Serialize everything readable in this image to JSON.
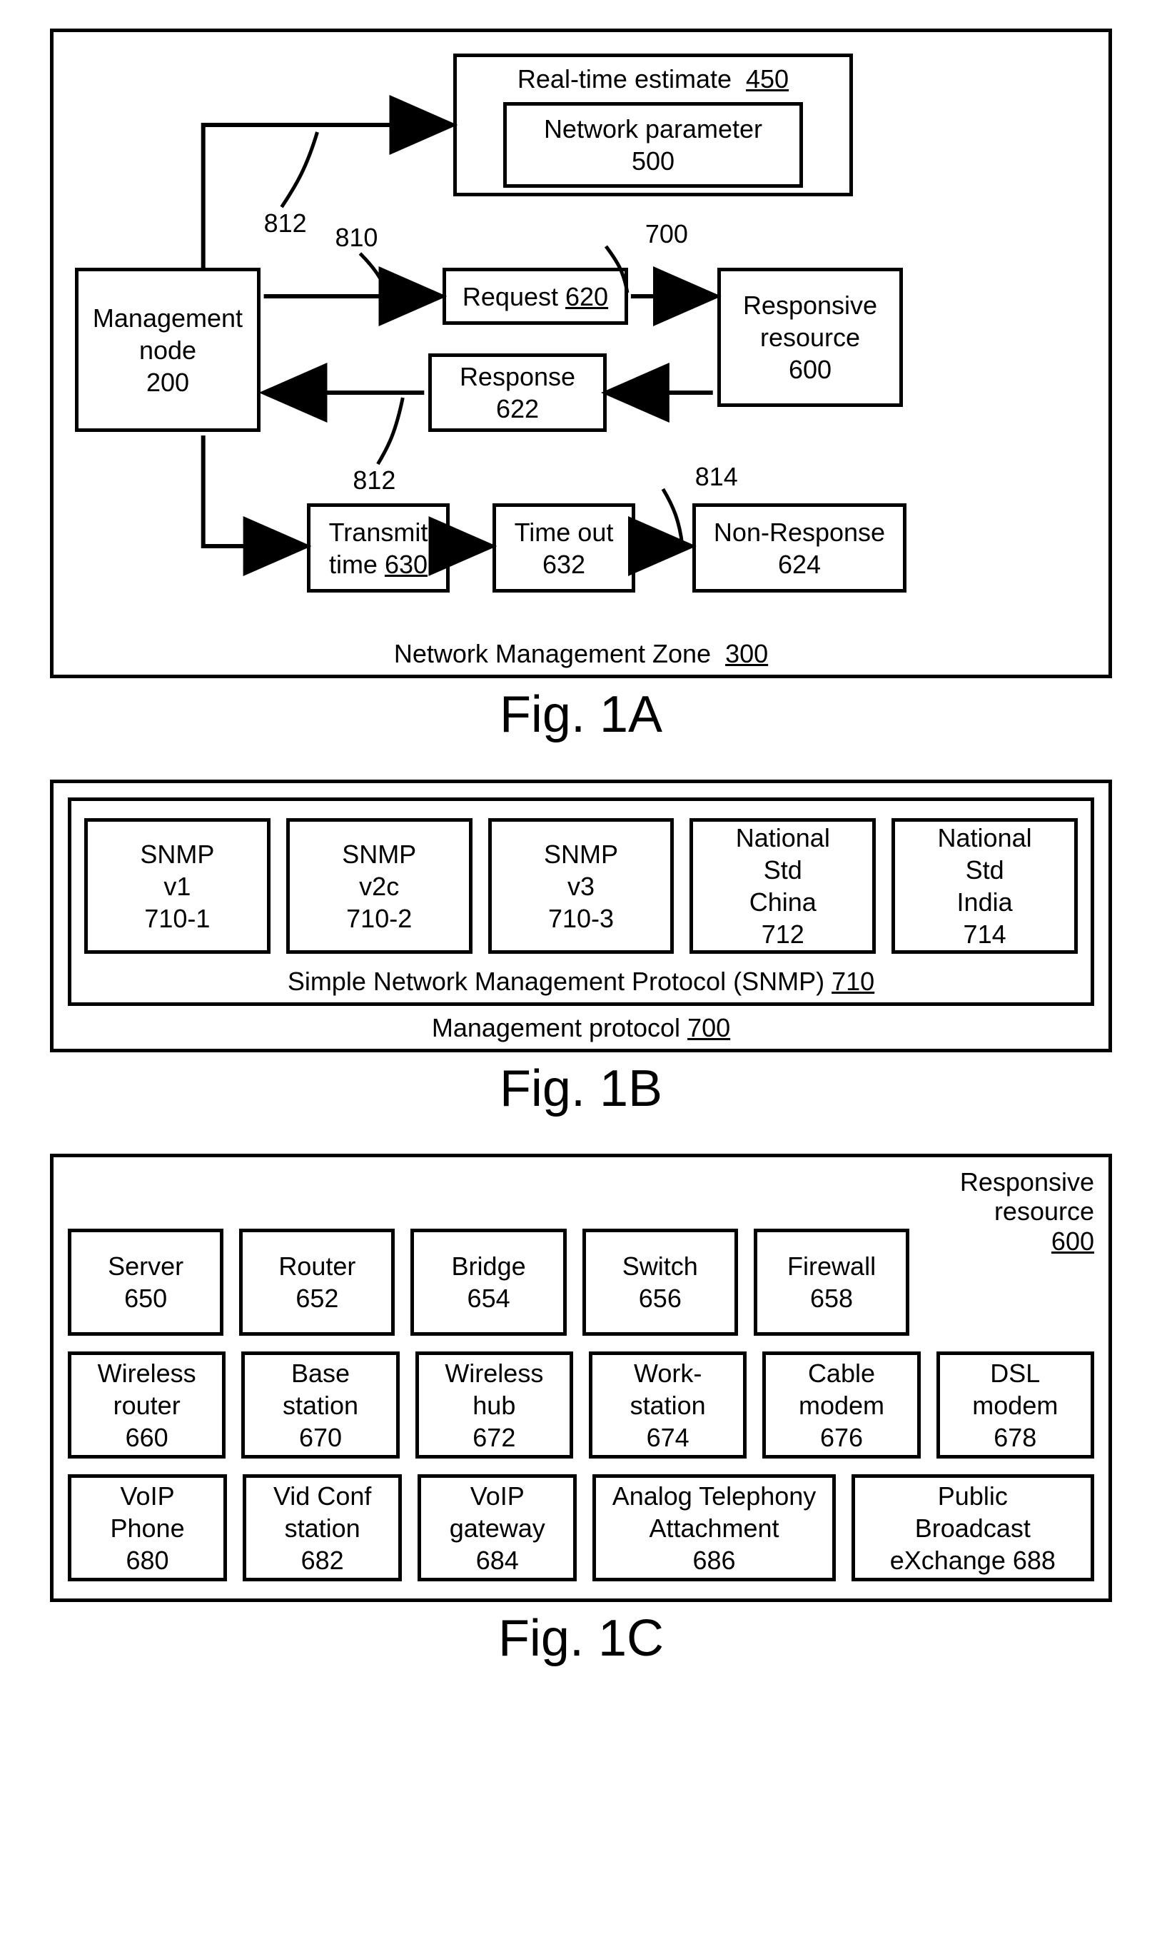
{
  "colors": {
    "stroke": "#000000",
    "bg": "#ffffff"
  },
  "stroke_width": 5,
  "fontsize_box": 36,
  "fontsize_caption": 72,
  "fig1a": {
    "container_label": "Network Management Zone",
    "container_num": "300",
    "figure_caption": "Fig. 1A",
    "nodes": {
      "mgmt": {
        "lines": [
          "Management",
          "node",
          "200"
        ]
      },
      "rte": {
        "title": "Real-time estimate",
        "title_num": "450",
        "inner_lines": [
          "Network parameter",
          "500"
        ]
      },
      "req": {
        "label": "Request",
        "num": "620"
      },
      "resp": {
        "label": "Response",
        "num": "622"
      },
      "rr": {
        "lines": [
          "Responsive",
          "resource",
          "600"
        ]
      },
      "tt": {
        "label": "Transmit",
        "label2": "time",
        "num": "630"
      },
      "to": {
        "label": "Time out",
        "num": "632"
      },
      "nr": {
        "label": "Non-Response",
        "num": "624"
      }
    },
    "edge_labels": {
      "e812a": "812",
      "e810": "810",
      "e700": "700",
      "e812b": "812",
      "e814": "814"
    }
  },
  "fig1b": {
    "figure_caption": "Fig. 1B",
    "outer_label": "Management protocol",
    "outer_num": "700",
    "inner_label": "Simple Network Management Protocol (SNMP)",
    "inner_num": "710",
    "items": [
      {
        "lines": [
          "SNMP",
          "v1",
          "710-1"
        ]
      },
      {
        "lines": [
          "SNMP",
          "v2c",
          "710-2"
        ]
      },
      {
        "lines": [
          "SNMP",
          "v3",
          "710-3"
        ]
      },
      {
        "lines": [
          "National",
          "Std",
          "China",
          "712"
        ]
      },
      {
        "lines": [
          "National",
          "Std",
          "India",
          "714"
        ]
      }
    ]
  },
  "fig1c": {
    "figure_caption": "Fig. 1C",
    "title": "Responsive resource",
    "title_num": "600",
    "rows": [
      [
        {
          "w": 1,
          "lines": [
            "Server",
            "650"
          ]
        },
        {
          "w": 1,
          "lines": [
            "Router",
            "652"
          ]
        },
        {
          "w": 1,
          "lines": [
            "Bridge",
            "654"
          ]
        },
        {
          "w": 1,
          "lines": [
            "Switch",
            "656"
          ]
        },
        {
          "w": 1,
          "lines": [
            "Firewall",
            "658"
          ]
        }
      ],
      [
        {
          "w": 1,
          "lines": [
            "Wireless",
            "router",
            "660"
          ]
        },
        {
          "w": 1,
          "lines": [
            "Base",
            "station",
            "670"
          ]
        },
        {
          "w": 1,
          "lines": [
            "Wireless",
            "hub",
            "672"
          ]
        },
        {
          "w": 1,
          "lines": [
            "Work-",
            "station",
            "674"
          ]
        },
        {
          "w": 1,
          "lines": [
            "Cable",
            "modem",
            "676"
          ]
        },
        {
          "w": 1,
          "lines": [
            "DSL",
            "modem",
            "678"
          ]
        }
      ],
      [
        {
          "w": 1,
          "lines": [
            "VoIP",
            "Phone",
            "680"
          ]
        },
        {
          "w": 1,
          "lines": [
            "Vid Conf",
            "station",
            "682"
          ]
        },
        {
          "w": 1,
          "lines": [
            "VoIP",
            "gateway",
            "684"
          ]
        },
        {
          "w": 1.55,
          "lines": [
            "Analog Telephony",
            "Attachment",
            "686"
          ]
        },
        {
          "w": 1.55,
          "lines": [
            "Public",
            "Broadcast",
            "eXchange 688"
          ]
        }
      ]
    ]
  }
}
